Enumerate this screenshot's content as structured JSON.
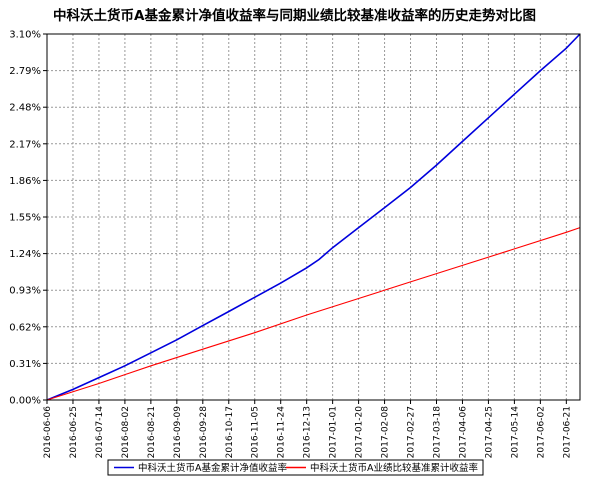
{
  "chart_data": {
    "type": "line",
    "title": "中科沃土货币A基金累计净值收益率与同期业绩比较基准收益率的历史走势对比图",
    "xlabel": "",
    "ylabel": "",
    "ylim": [
      0,
      3.1
    ],
    "y_ticks": [
      "0.00%",
      "0.31%",
      "0.62%",
      "0.93%",
      "1.24%",
      "1.55%",
      "1.86%",
      "2.17%",
      "2.48%",
      "2.79%",
      "3.10%"
    ],
    "x_ticks": [
      "2016-06-06",
      "2016-06-25",
      "2016-07-14",
      "2016-08-02",
      "2016-08-21",
      "2016-09-09",
      "2016-09-28",
      "2016-10-17",
      "2016-11-05",
      "2016-11-24",
      "2016-12-13",
      "2017-01-01",
      "2017-01-20",
      "2017-02-08",
      "2017-02-27",
      "2017-03-18",
      "2017-04-06",
      "2017-04-25",
      "2017-05-14",
      "2017-06-02",
      "2017-06-21"
    ],
    "x_range": [
      "2016-06-06",
      "2017-07-01"
    ],
    "grid": true,
    "legend_position": "bottom",
    "series": [
      {
        "name": "中科沃土货币A基金累计净值收益率",
        "color": "#0000dd",
        "x": [
          "2016-06-06",
          "2016-06-25",
          "2016-07-14",
          "2016-08-02",
          "2016-08-21",
          "2016-09-09",
          "2016-09-28",
          "2016-10-17",
          "2016-11-05",
          "2016-11-24",
          "2016-12-13",
          "2016-12-22",
          "2017-01-01",
          "2017-01-20",
          "2017-02-08",
          "2017-02-27",
          "2017-03-18",
          "2017-04-06",
          "2017-04-25",
          "2017-05-14",
          "2017-06-02",
          "2017-06-21",
          "2017-07-01"
        ],
        "values": [
          0.0,
          0.09,
          0.19,
          0.29,
          0.4,
          0.51,
          0.63,
          0.75,
          0.87,
          0.99,
          1.12,
          1.19,
          1.29,
          1.46,
          1.63,
          1.8,
          1.99,
          2.19,
          2.39,
          2.59,
          2.79,
          2.98,
          3.1
        ]
      },
      {
        "name": "中科沃土货币A业绩比较基准累计收益率",
        "color": "#ff0000",
        "x": [
          "2016-06-06",
          "2016-07-14",
          "2016-08-21",
          "2016-09-28",
          "2016-11-05",
          "2016-12-13",
          "2017-01-20",
          "2017-02-27",
          "2017-04-06",
          "2017-05-14",
          "2017-06-21",
          "2017-07-01"
        ],
        "values": [
          0.0,
          0.14,
          0.29,
          0.43,
          0.57,
          0.72,
          0.86,
          1.0,
          1.14,
          1.28,
          1.42,
          1.46
        ]
      }
    ]
  }
}
